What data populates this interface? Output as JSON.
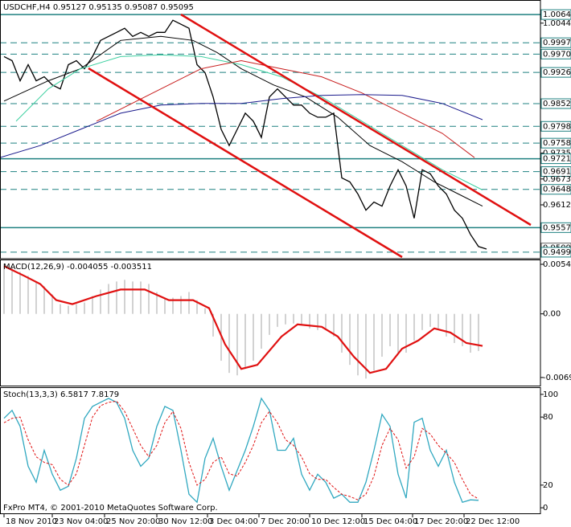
{
  "chart_data": [
    {
      "type": "line",
      "title": "USDCHF,H4  0.95127 0.95135 0.95087 0.95095",
      "xlim": [
        -0.5,
        66.7
      ],
      "ylim": [
        0.9484,
        1.0099
      ],
      "xticks": [
        {
          "value": 0,
          "label": "18 Nov 2010"
        },
        {
          "value": 6,
          "label": "23 Nov 04:00"
        },
        {
          "value": 12.5,
          "label": "25 Nov 20:00"
        },
        {
          "value": 19,
          "label": "30 Nov 12:00"
        },
        {
          "value": 25.3,
          "label": "3 Dec 04:00"
        },
        {
          "value": 31.7,
          "label": "7 Dec 20:00"
        },
        {
          "value": 38,
          "label": "10 Dec 12:00"
        },
        {
          "value": 44.5,
          "label": "15 Dec 04:00"
        },
        {
          "value": 50.8,
          "label": "17 Dec 20:00"
        },
        {
          "value": 57.2,
          "label": "22 Dec 12:00"
        }
      ],
      "yticks": [
        {
          "value": 1.00644,
          "label": "1.00644",
          "line": "solid"
        },
        {
          "value": 1.0044,
          "label": "1.00440"
        },
        {
          "value": 0.99974,
          "label": "0.99974",
          "line": "dashed"
        },
        {
          "value": 0.99704,
          "label": "0.99704",
          "line": "dashed"
        },
        {
          "value": 0.99269,
          "label": "0.99269",
          "line": "dashed"
        },
        {
          "value": 0.98526,
          "label": "0.98526",
          "line": "dashed"
        },
        {
          "value": 0.97986,
          "label": "0.97986",
          "line": "dashed"
        },
        {
          "value": 0.97587,
          "label": "0.97587",
          "line": "dashed"
        },
        {
          "value": 0.9735,
          "label": "0.97350"
        },
        {
          "value": 0.97216,
          "label": "0.97216",
          "line": "solid"
        },
        {
          "value": 0.96911,
          "label": "0.96911",
          "line": "dashed"
        },
        {
          "value": 0.96735,
          "label": "0.96735"
        },
        {
          "value": 0.96488,
          "label": "0.96488",
          "line": "dashed"
        },
        {
          "value": 0.9612,
          "label": "0.96120"
        },
        {
          "value": 0.95578,
          "label": "0.95578",
          "line": "solid"
        },
        {
          "value": 0.95095,
          "label": "0.95095",
          "line": "current"
        },
        {
          "value": 0.94994,
          "label": "0.94994",
          "line": "dashed"
        }
      ],
      "series": [
        {
          "color": "#000000",
          "values": [
            0.99645,
            0.99548,
            0.99068,
            0.99452,
            0.99068,
            0.99164,
            0.98972,
            0.98876,
            0.99452,
            0.99548,
            0.99356,
            0.99645,
            1.00029,
            1.00125,
            1.00221,
            1.00317,
            1.00125,
            1.00221,
            1.00125,
            1.00221,
            1.00221,
            1.00509,
            1.00413,
            1.00317,
            0.99452,
            0.9926,
            0.98684,
            0.97915,
            0.9753,
            0.97915,
            0.98299,
            0.98107,
            0.97723,
            0.98684,
            0.98876,
            0.98684,
            0.98491,
            0.98491,
            0.98299,
            0.98203,
            0.98203,
            0.98299,
            0.96762,
            0.96666,
            0.96377,
            0.95993,
            0.96185,
            0.96089,
            0.96569,
            0.96954,
            0.96569,
            0.95801,
            0.96954,
            0.96858,
            0.96569,
            0.96377,
            0.95993,
            0.95801,
            0.95416,
            0.95128,
            0.9507
          ]
        },
        {
          "color": "#000000",
          "x": [
            0,
            5.5,
            9.5,
            14.5,
            19.5,
            23.5,
            26.5,
            29.5,
            33.5,
            37.5,
            41.5,
            45.5,
            49.5,
            53.5,
            56.5,
            59.5
          ],
          "values": [
            0.98587,
            0.99068,
            0.99356,
            1.00029,
            1.00125,
            1.00029,
            0.99741,
            0.99356,
            0.98972,
            0.98684,
            0.98203,
            0.9753,
            0.97146,
            0.96666,
            0.96377,
            0.96089
          ]
        },
        {
          "color": "#3cd0a0",
          "x": [
            1.5,
            5.5,
            9.5,
            14.5,
            19.5,
            24.5,
            29.5,
            34.5,
            39.5,
            44.5,
            49.5,
            54.5,
            59.5
          ],
          "values": [
            0.98107,
            0.98876,
            0.99356,
            0.99645,
            0.99683,
            0.99645,
            0.99452,
            0.99164,
            0.98684,
            0.98107,
            0.9753,
            0.96954,
            0.96473
          ]
        },
        {
          "color": "#c81e1e",
          "x": [
            11.5,
            19.5,
            24.5,
            29.5,
            34.5,
            39.5,
            44.5,
            49.5,
            54.5,
            58.5
          ],
          "values": [
            0.98107,
            0.98876,
            0.99356,
            0.99548,
            0.99356,
            0.99164,
            0.9878,
            0.98299,
            0.97819,
            0.97242
          ]
        },
        {
          "color": "#1a1a8c",
          "x": [
            -0.5,
            4.5,
            9.5,
            14.5,
            19.5,
            24.5,
            29.5,
            34.5,
            39.5,
            44.5,
            49.5,
            54.5,
            59.5
          ],
          "values": [
            0.97242,
            0.9753,
            0.97915,
            0.98299,
            0.98491,
            0.9853,
            0.9853,
            0.98645,
            0.98722,
            0.98741,
            0.98722,
            0.9853,
            0.98145
          ]
        }
      ]
    },
    {
      "type": "bar",
      "title": "MACD(12,26,9) -0.004055 -0.003511",
      "ylim": [
        -0.00785,
        0.00586
      ],
      "yticks": [
        0.00542,
        {
          "value": 0,
          "label": "0.00"
        },
        -0.00696
      ],
      "series": [
        {
          "color": "#b4b4b4",
          "style": "histogram",
          "values": [
            0.00549,
            0.00504,
            0.0046,
            0.00416,
            0.00354,
            0.00301,
            0.00212,
            0.00106,
            0.00089,
            0.00106,
            0.00124,
            0.00195,
            0.00266,
            0.00327,
            0.00354,
            0.00372,
            0.00354,
            0.00354,
            0.00327,
            0.00239,
            0.00177,
            0.00177,
            0.00195,
            0.00239,
            0.0015,
            0.00062,
            -0.00248,
            -0.00513,
            -0.00646,
            -0.00673,
            -0.00602,
            -0.00513,
            -0.00381,
            -0.0023,
            -0.00142,
            -0.00115,
            -0.00106,
            -0.00124,
            -0.00159,
            -0.00177,
            -0.00159,
            -0.00248,
            -0.00425,
            -0.00558,
            -0.00673,
            -0.00708,
            -0.0062,
            -0.00469,
            -0.00354,
            -0.00425,
            -0.00425,
            -0.00292,
            -0.00177,
            -0.00142,
            -0.00159,
            -0.00248,
            -0.00319,
            -0.00354,
            -0.00425,
            -0.00406
          ]
        },
        {
          "color": "#e01010",
          "style": "line",
          "x": [
            0,
            2.5,
            4.5,
            6.5,
            8.5,
            11.5,
            14.5,
            17.5,
            20.5,
            23.5,
            25.5,
            27.5,
            29.5,
            31.5,
            34.5,
            36.5,
            39.5,
            41.5,
            43.5,
            45.5,
            47.5,
            49.5,
            51.5,
            53.5,
            55.5,
            57.5,
            59.5
          ],
          "values": [
            0.00522,
            0.00416,
            0.00327,
            0.0015,
            0.00106,
            0.00195,
            0.00266,
            0.00266,
            0.0015,
            0.0015,
            0.00062,
            -0.00336,
            -0.00602,
            -0.00558,
            -0.00248,
            -0.00115,
            -0.00142,
            -0.00248,
            -0.00469,
            -0.00646,
            -0.00602,
            -0.00381,
            -0.00292,
            -0.00159,
            -0.00204,
            -0.00319,
            -0.00351
          ]
        }
      ]
    },
    {
      "type": "line",
      "title": "Stoch(13,3,3) 6.5817 7.8179",
      "ylim": [
        -5.6,
        104.9
      ],
      "yticks": [
        100,
        80,
        20,
        0
      ],
      "series": [
        {
          "color": "#30a8c0",
          "style": "line",
          "values": [
            78.9,
            85.9,
            71.8,
            36.6,
            22.5,
            50.7,
            29.6,
            15.5,
            19.0,
            43.7,
            78.9,
            89.4,
            93.0,
            96.5,
            93.0,
            78.9,
            50.7,
            36.6,
            43.7,
            71.8,
            89.4,
            85.9,
            50.7,
            12.0,
            4.9,
            43.7,
            61.3,
            36.6,
            15.5,
            33.1,
            50.7,
            71.8,
            96.5,
            85.9,
            50.7,
            50.7,
            61.3,
            29.6,
            15.5,
            29.6,
            22.5,
            8.5,
            12.0,
            4.9,
            4.9,
            22.5,
            50.7,
            82.4,
            71.8,
            29.6,
            8.5,
            75.4,
            78.9,
            50.7,
            36.6,
            50.7,
            22.5,
            4.9,
            7.0,
            6.6
          ]
        },
        {
          "color": "#e01010",
          "style": "dashed",
          "values": [
            75,
            78.9,
            80,
            60,
            45,
            40,
            38,
            25,
            20,
            30,
            55,
            80,
            90,
            93,
            94,
            85,
            70,
            55,
            45,
            55,
            75,
            85,
            70,
            40,
            20,
            25,
            40,
            45,
            30,
            28,
            40,
            55,
            75,
            85,
            75,
            60,
            55,
            45,
            30,
            25,
            25,
            18,
            12,
            10,
            7,
            12,
            28,
            55,
            70,
            60,
            35,
            45,
            70,
            65,
            55,
            48,
            40,
            25,
            12,
            7.8
          ]
        }
      ]
    }
  ],
  "footer": "FxPro MT4, © 2001-2010 MetaQuotes Software Corp."
}
